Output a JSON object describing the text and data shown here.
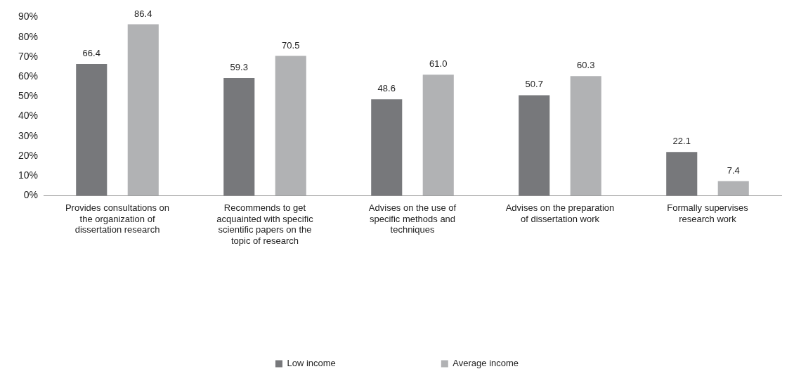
{
  "chart_data": {
    "type": "bar",
    "categories": [
      "Provides consultations on the organization of dissertation research",
      "Recommends to get acquainted with specific scientific papers on the topic of research",
      "Advises on the use of specific methods and techniques",
      "Advises on the preparation of dissertation work",
      "Formally supervises research work"
    ],
    "series": [
      {
        "name": "Low income",
        "color": "#77787b",
        "values": [
          66.4,
          59.3,
          48.6,
          50.7,
          22.1
        ],
        "value_labels": [
          "66.4",
          "59.3",
          "48.6",
          "50.7",
          "22.1"
        ]
      },
      {
        "name": "Average income",
        "color": "#b1b2b4",
        "values": [
          86.4,
          70.5,
          61.0,
          60.3,
          7.4
        ],
        "value_labels": [
          "86.4",
          "70.5",
          "61.0",
          "60.3",
          "7.4"
        ]
      }
    ],
    "ylim": [
      0,
      90
    ],
    "yticks": [
      {
        "value": 0,
        "label": "0%"
      },
      {
        "value": 10,
        "label": "10%"
      },
      {
        "value": 20,
        "label": "20%"
      },
      {
        "value": 30,
        "label": "30%"
      },
      {
        "value": 40,
        "label": "40%"
      },
      {
        "value": 50,
        "label": "50%"
      },
      {
        "value": 60,
        "label": "60%"
      },
      {
        "value": 70,
        "label": "70%"
      },
      {
        "value": 80,
        "label": "80%"
      },
      {
        "value": 90,
        "label": "90%"
      }
    ],
    "grid": false,
    "legend": "bottom"
  }
}
